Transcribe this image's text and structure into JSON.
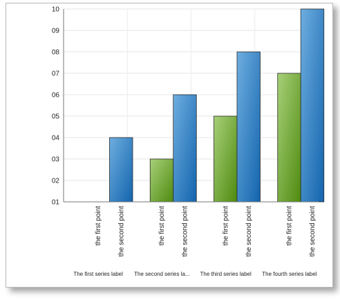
{
  "chart_data": {
    "type": "bar",
    "title": "",
    "xlabel": "",
    "ylabel": "",
    "ylim": [
      1,
      10
    ],
    "y_tick_labels": [
      "01",
      "02",
      "03",
      "04",
      "05",
      "06",
      "07",
      "08",
      "09",
      "10"
    ],
    "y_tick_values": [
      1,
      2,
      3,
      4,
      5,
      6,
      7,
      8,
      9,
      10
    ],
    "groups": [
      "The first series label",
      "The second series la...",
      "The third series label",
      "The fourth series label"
    ],
    "series": [
      {
        "name": "the first point",
        "colors": [
          "#a8d079",
          "#4e8a0f"
        ],
        "values": [
          1,
          3,
          5,
          7
        ]
      },
      {
        "name": "the second point",
        "colors": [
          "#6eaee0",
          "#1364ad"
        ],
        "values": [
          4,
          6,
          8,
          10
        ]
      }
    ],
    "grid": true,
    "legend": "none"
  }
}
